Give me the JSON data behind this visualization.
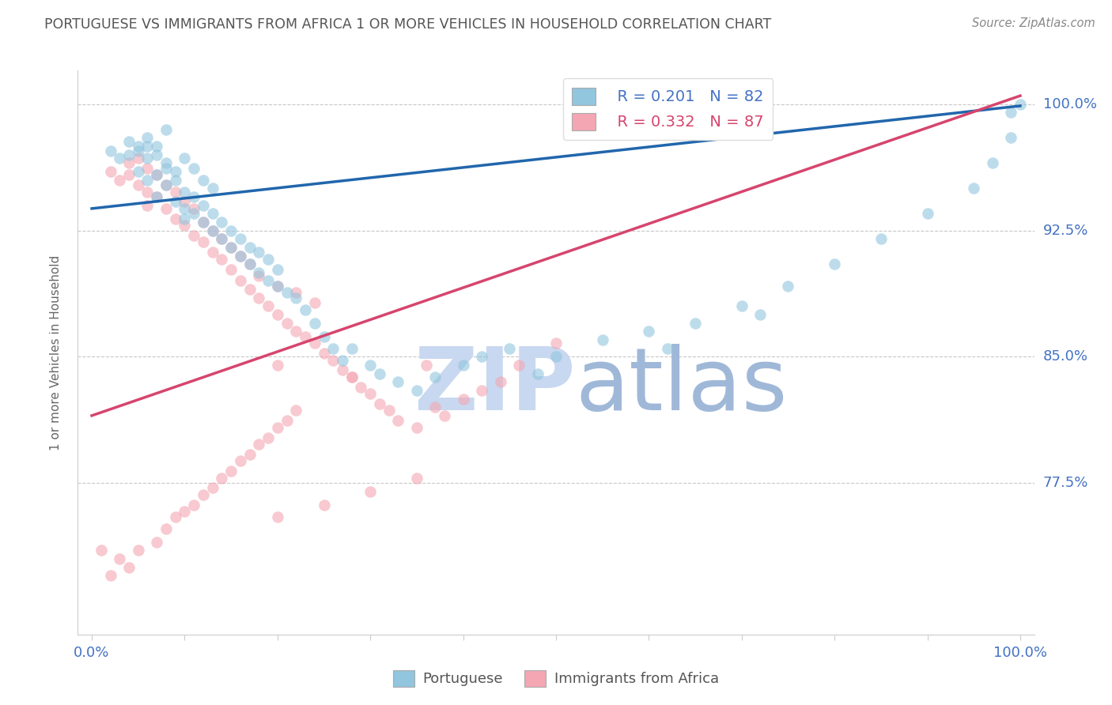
{
  "title": "PORTUGUESE VS IMMIGRANTS FROM AFRICA 1 OR MORE VEHICLES IN HOUSEHOLD CORRELATION CHART",
  "source": "Source: ZipAtlas.com",
  "ylabel": "1 or more Vehicles in Household",
  "ytick_labels": [
    "100.0%",
    "92.5%",
    "85.0%",
    "77.5%"
  ],
  "ytick_values": [
    1.0,
    0.925,
    0.85,
    0.775
  ],
  "ylim": [
    0.685,
    1.02
  ],
  "xlim": [
    -0.015,
    1.015
  ],
  "legend_blue_r": "R = 0.201",
  "legend_blue_n": "N = 82",
  "legend_pink_r": "R = 0.332",
  "legend_pink_n": "N = 87",
  "legend_label_blue": "Portuguese",
  "legend_label_pink": "Immigrants from Africa",
  "blue_scatter_x": [
    0.02,
    0.03,
    0.04,
    0.05,
    0.05,
    0.06,
    0.06,
    0.07,
    0.07,
    0.08,
    0.08,
    0.09,
    0.09,
    0.1,
    0.1,
    0.1,
    0.11,
    0.11,
    0.12,
    0.12,
    0.13,
    0.13,
    0.14,
    0.14,
    0.15,
    0.15,
    0.16,
    0.16,
    0.17,
    0.17,
    0.18,
    0.18,
    0.19,
    0.19,
    0.2,
    0.2,
    0.21,
    0.22,
    0.23,
    0.24,
    0.25,
    0.26,
    0.27,
    0.28,
    0.3,
    0.31,
    0.33,
    0.35,
    0.37,
    0.4,
    0.42,
    0.45,
    0.48,
    0.5,
    0.55,
    0.6,
    0.62,
    0.65,
    0.7,
    0.72,
    0.75,
    0.8,
    0.85,
    0.9,
    0.95,
    0.97,
    0.99,
    0.99,
    1.0,
    0.06,
    0.07,
    0.08,
    0.09,
    0.1,
    0.11,
    0.12,
    0.13,
    0.04,
    0.05,
    0.06,
    0.07,
    0.08
  ],
  "blue_scatter_y": [
    0.972,
    0.968,
    0.97,
    0.96,
    0.975,
    0.955,
    0.968,
    0.945,
    0.958,
    0.952,
    0.962,
    0.942,
    0.955,
    0.948,
    0.938,
    0.932,
    0.945,
    0.935,
    0.93,
    0.94,
    0.925,
    0.935,
    0.92,
    0.93,
    0.915,
    0.925,
    0.91,
    0.92,
    0.905,
    0.915,
    0.9,
    0.912,
    0.895,
    0.908,
    0.892,
    0.902,
    0.888,
    0.885,
    0.878,
    0.87,
    0.862,
    0.855,
    0.848,
    0.855,
    0.845,
    0.84,
    0.835,
    0.83,
    0.838,
    0.845,
    0.85,
    0.855,
    0.84,
    0.85,
    0.86,
    0.865,
    0.855,
    0.87,
    0.88,
    0.875,
    0.892,
    0.905,
    0.92,
    0.935,
    0.95,
    0.965,
    0.98,
    0.995,
    1.0,
    0.975,
    0.97,
    0.965,
    0.96,
    0.968,
    0.962,
    0.955,
    0.95,
    0.978,
    0.972,
    0.98,
    0.975,
    0.985
  ],
  "pink_scatter_x": [
    0.01,
    0.02,
    0.02,
    0.03,
    0.03,
    0.04,
    0.04,
    0.05,
    0.05,
    0.06,
    0.06,
    0.07,
    0.07,
    0.08,
    0.08,
    0.09,
    0.09,
    0.1,
    0.1,
    0.11,
    0.11,
    0.12,
    0.12,
    0.13,
    0.13,
    0.14,
    0.14,
    0.15,
    0.15,
    0.16,
    0.16,
    0.17,
    0.17,
    0.18,
    0.18,
    0.19,
    0.19,
    0.2,
    0.2,
    0.21,
    0.21,
    0.22,
    0.22,
    0.23,
    0.24,
    0.25,
    0.26,
    0.27,
    0.28,
    0.29,
    0.3,
    0.31,
    0.32,
    0.33,
    0.35,
    0.37,
    0.38,
    0.4,
    0.42,
    0.44,
    0.46,
    0.05,
    0.06,
    0.07,
    0.08,
    0.09,
    0.1,
    0.11,
    0.12,
    0.13,
    0.14,
    0.15,
    0.16,
    0.17,
    0.18,
    0.2,
    0.22,
    0.24,
    0.04,
    0.2,
    0.28,
    0.36,
    0.5,
    0.2,
    0.25,
    0.3,
    0.35
  ],
  "pink_scatter_y": [
    0.735,
    0.96,
    0.72,
    0.955,
    0.73,
    0.958,
    0.725,
    0.952,
    0.735,
    0.948,
    0.94,
    0.945,
    0.74,
    0.938,
    0.748,
    0.932,
    0.755,
    0.928,
    0.758,
    0.922,
    0.762,
    0.918,
    0.768,
    0.912,
    0.772,
    0.908,
    0.778,
    0.902,
    0.782,
    0.895,
    0.788,
    0.89,
    0.792,
    0.885,
    0.798,
    0.88,
    0.802,
    0.875,
    0.808,
    0.87,
    0.812,
    0.865,
    0.818,
    0.862,
    0.858,
    0.852,
    0.848,
    0.842,
    0.838,
    0.832,
    0.828,
    0.822,
    0.818,
    0.812,
    0.808,
    0.82,
    0.815,
    0.825,
    0.83,
    0.835,
    0.845,
    0.968,
    0.962,
    0.958,
    0.952,
    0.948,
    0.942,
    0.938,
    0.93,
    0.925,
    0.92,
    0.915,
    0.91,
    0.905,
    0.898,
    0.892,
    0.888,
    0.882,
    0.965,
    0.845,
    0.838,
    0.845,
    0.858,
    0.755,
    0.762,
    0.77,
    0.778
  ],
  "blue_line_x": [
    0.0,
    1.0
  ],
  "blue_line_y": [
    0.938,
    0.999
  ],
  "pink_line_x": [
    0.0,
    1.0
  ],
  "pink_line_y": [
    0.815,
    1.005
  ],
  "scatter_size": 110,
  "blue_color": "#92c5de",
  "pink_color": "#f4a6b2",
  "blue_line_color": "#2166ac",
  "pink_line_color": "#d6456e",
  "background_color": "#ffffff",
  "grid_color": "#c8c8c8",
  "title_color": "#555555",
  "axis_label_color": "#4472c4",
  "watermark_zip_color": "#c8d8f0",
  "watermark_atlas_color": "#a0b8d8",
  "source_color": "#888888"
}
